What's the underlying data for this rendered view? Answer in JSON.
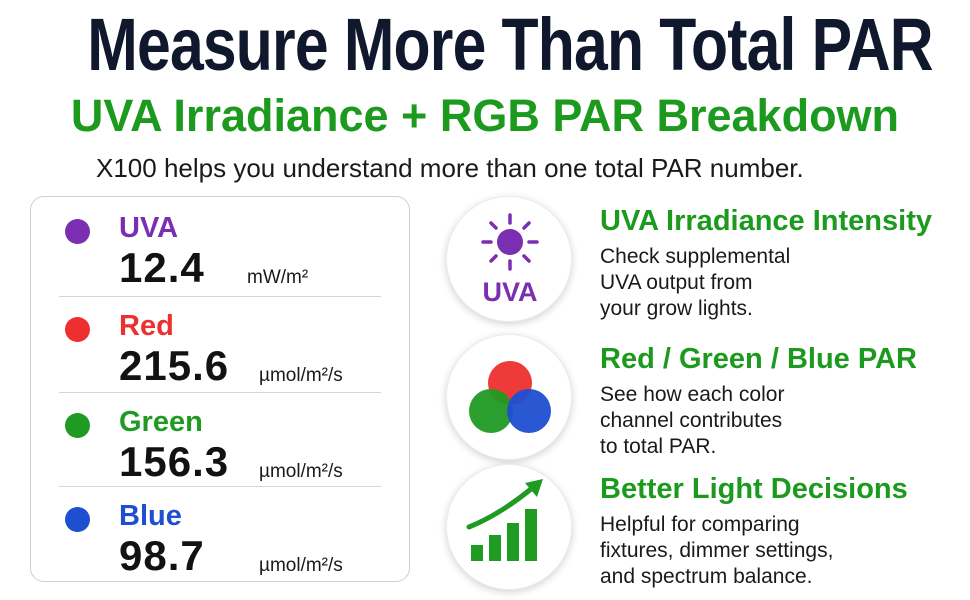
{
  "header": {
    "title": "Measure More Than Total PAR",
    "subtitle": "UVA Irradiance + RGB PAR Breakdown",
    "tagline": "X100 helps you understand more than one total PAR number."
  },
  "readings": [
    {
      "name": "UVA",
      "value": "12.4",
      "unit": "mW/m²",
      "color": "#7a2fb3"
    },
    {
      "name": "Red",
      "value": "215.6",
      "unit": "µmol/m²/s",
      "color": "#ee2f2f"
    },
    {
      "name": "Green",
      "value": "156.3",
      "unit": "µmol/m²/s",
      "color": "#1f9a22"
    },
    {
      "name": "Blue",
      "value": "98.7",
      "unit": "µmol/m²/s",
      "color": "#1e4fd0"
    }
  ],
  "features": [
    {
      "icon": "sun-uva-icon",
      "icon_label": "UVA",
      "title": "UVA Irradiance Intensity",
      "description": "Check supplemental\nUVA output from\nyour grow lights."
    },
    {
      "icon": "rgb-circles-icon",
      "title": "Red / Green / Blue PAR",
      "description": "See how each color\nchannel contributes\nto total PAR."
    },
    {
      "icon": "growth-chart-icon",
      "title": "Better Light Decisions",
      "description": "Helpful for comparing\nfixtures, dimmer settings,\nand spectrum balance."
    }
  ],
  "colors": {
    "title": "#10182e",
    "accent_green": "#1c9a1e",
    "uva_purple": "#7a2fb3"
  }
}
